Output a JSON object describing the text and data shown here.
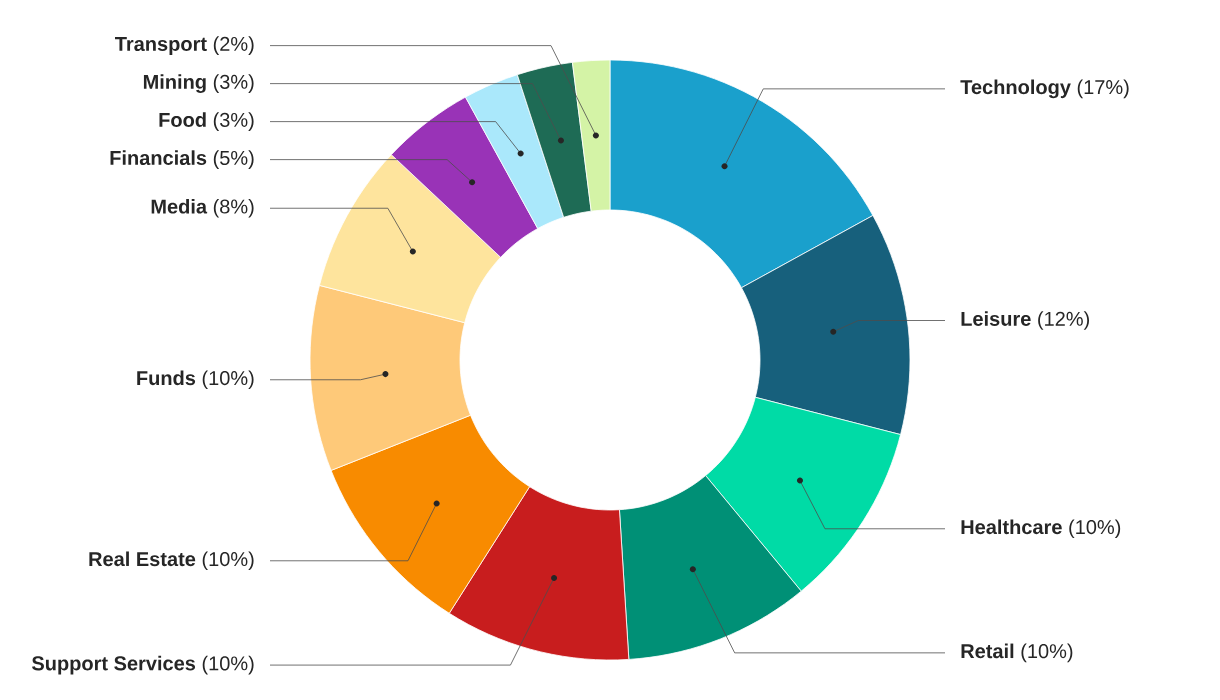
{
  "chart_data": {
    "type": "donut",
    "categories": [
      "Technology",
      "Leisure",
      "Healthcare",
      "Retail",
      "Support Services",
      "Real Estate",
      "Funds",
      "Media",
      "Financials",
      "Food",
      "Mining",
      "Transport"
    ],
    "values": [
      17,
      12,
      10,
      10,
      10,
      10,
      10,
      8,
      5,
      3,
      3,
      2
    ],
    "value_labels": [
      "(17%)",
      "(12%)",
      "(10%)",
      "(10%)",
      "(10%)",
      "(10%)",
      "(10%)",
      "(8%)",
      "(5%)",
      "(3%)",
      "(3%)",
      "(2%)"
    ],
    "colors": [
      "#1aa0cc",
      "#17607c",
      "#00dba6",
      "#009076",
      "#c81d1e",
      "#f88b00",
      "#fec979",
      "#fee49d",
      "#9933b7",
      "#aae8fb",
      "#1e6b55",
      "#d4f3a6"
    ]
  }
}
